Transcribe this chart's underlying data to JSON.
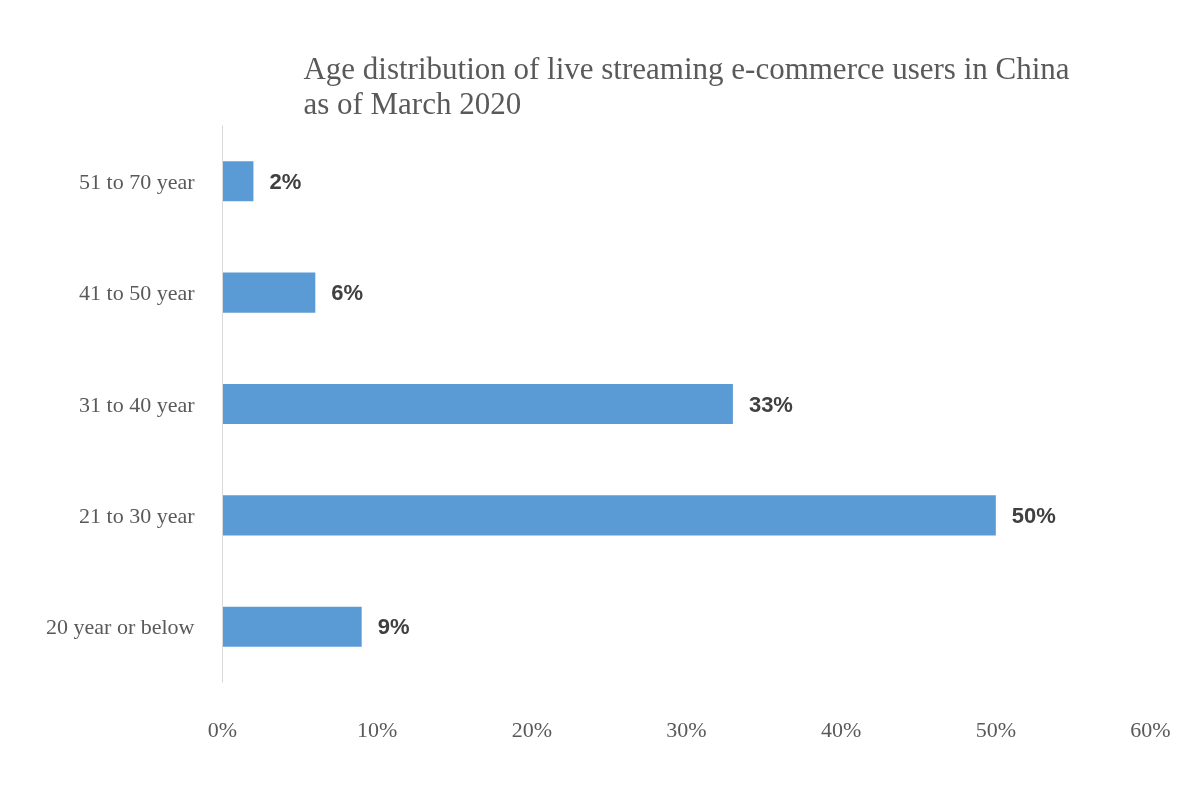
{
  "chart_data": {
    "type": "bar",
    "orientation": "horizontal",
    "title": "Age distribution of live streaming e-commerce users in China as of March 2020",
    "categories": [
      "51 to 70 year",
      "41 to 50 year",
      "31 to 40 year",
      "21 to 30 year",
      "20 year or below"
    ],
    "values": [
      2,
      6,
      33,
      50,
      9
    ],
    "value_labels": [
      "2%",
      "6%",
      "33%",
      "50%",
      "9%"
    ],
    "color": "#5b9bd5",
    "xlim": [
      0,
      60
    ],
    "xticks": [
      {
        "value": 0,
        "label": "0%"
      },
      {
        "value": 10,
        "label": "10%"
      },
      {
        "value": 20,
        "label": "20%"
      },
      {
        "value": 30,
        "label": "30%"
      },
      {
        "value": 40,
        "label": "40%"
      },
      {
        "value": 50,
        "label": "50%"
      },
      {
        "value": 60,
        "label": "60%"
      }
    ],
    "grid": false
  }
}
